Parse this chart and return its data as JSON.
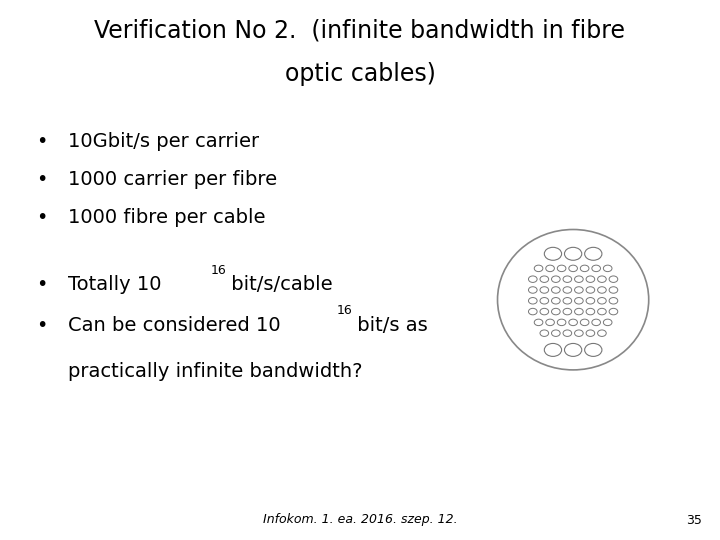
{
  "title_line1": "Verification No 2.  (infinite bandwidth in fibre",
  "title_line2": "optic cables)",
  "bullet1": "10Gbit/s per carrier",
  "bullet2": "1000 carrier per fibre",
  "bullet3": "1000 fibre per cable",
  "bullet4_prefix": "Totally 10",
  "bullet4_exp": "16",
  "bullet4_suffix": " bit/s/cable",
  "bullet5_prefix": "Can be considered 10",
  "bullet5_exp": "16",
  "bullet5_suffix": " bit/s as",
  "bullet5_line2": "practically infinite bandwidth?",
  "footer": "Infokom. 1. ea. 2016. szep. 12.",
  "page_num": "35",
  "bg_color": "#ffffff",
  "text_color": "#000000",
  "title_fontsize": 17,
  "body_fontsize": 14,
  "sup_fontsize": 9,
  "footer_fontsize": 9
}
